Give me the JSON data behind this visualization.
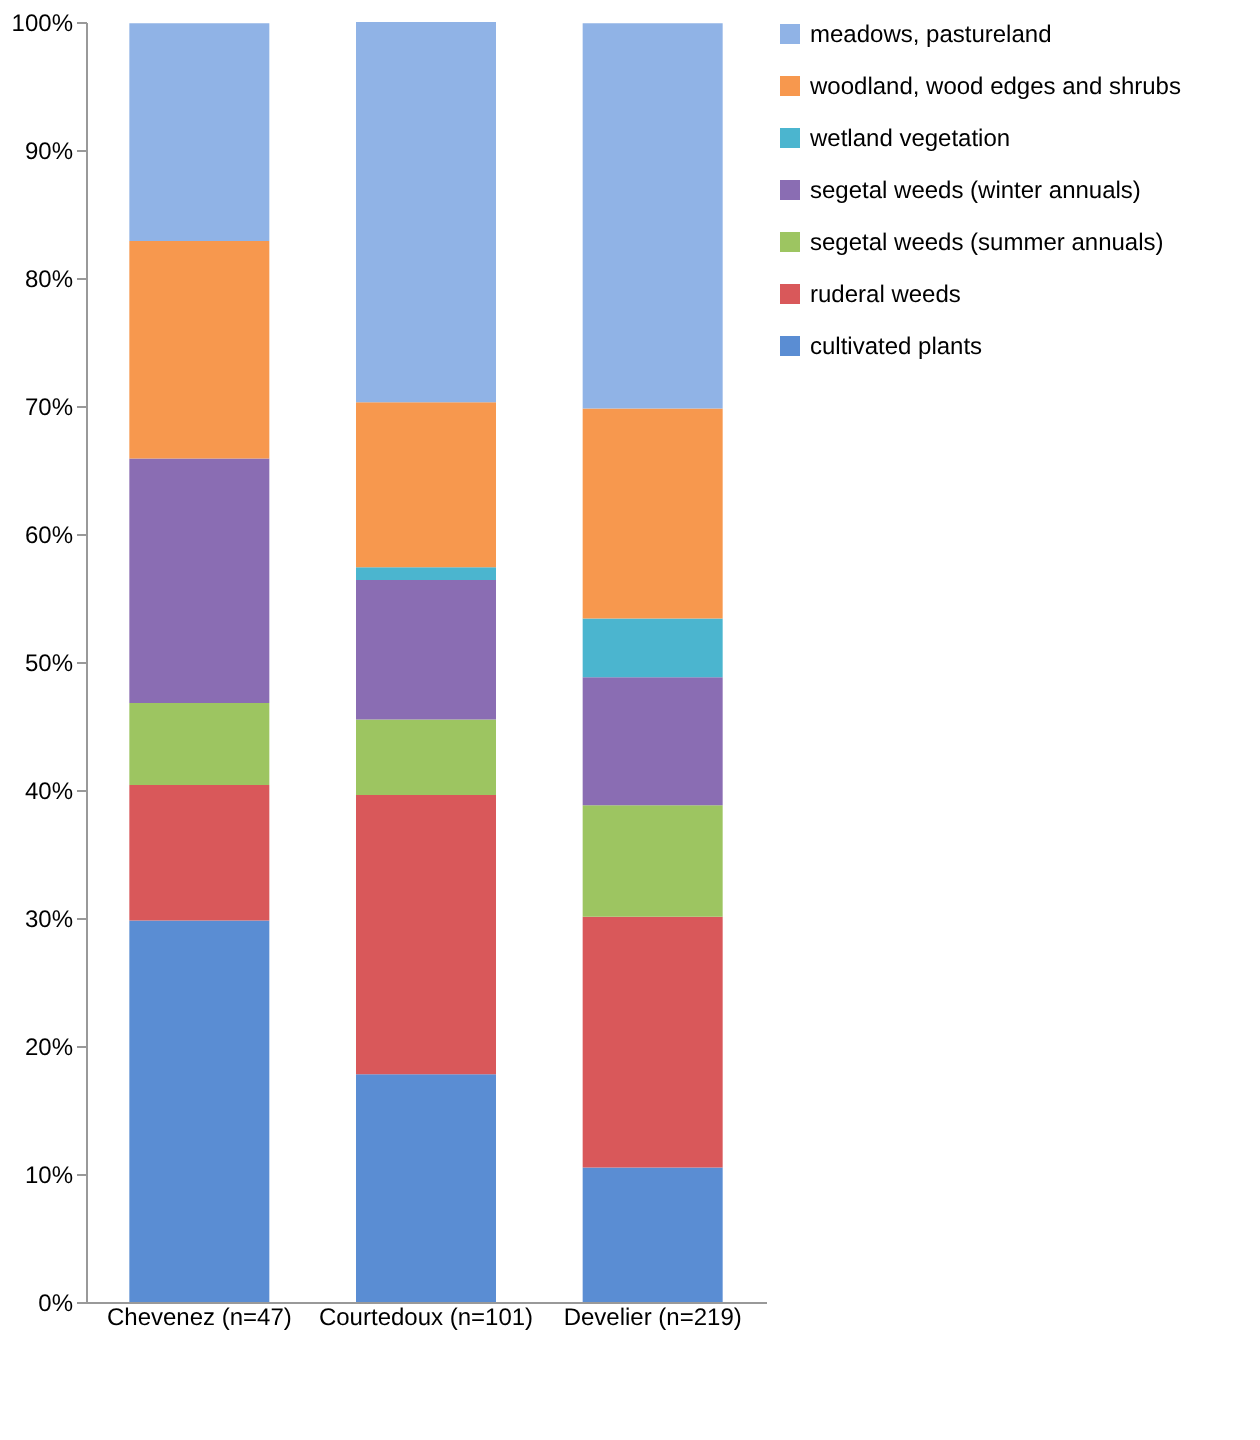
{
  "chart_data": {
    "type": "bar",
    "stacked": true,
    "categories": [
      "Chevenez (n=47)",
      "Courtedoux (n=101)",
      "Develier (n=219)"
    ],
    "series": [
      {
        "name": "cultivated plants",
        "color": "#5a8dd3",
        "values": [
          29.8,
          17.8,
          10.5
        ]
      },
      {
        "name": "ruderal weeds",
        "color": "#d9585a",
        "values": [
          10.6,
          21.8,
          19.6
        ]
      },
      {
        "name": "segetal weeds (summer annuals)",
        "color": "#9dc561",
        "values": [
          6.4,
          5.9,
          8.7
        ]
      },
      {
        "name": "segetal weeds (winter annuals)",
        "color": "#8a6db3",
        "values": [
          19.1,
          10.9,
          10.0
        ]
      },
      {
        "name": "wetland vegetation",
        "color": "#4bb5cf",
        "values": [
          0,
          1.0,
          4.6
        ]
      },
      {
        "name": "woodland, wood edges and shrubs",
        "color": "#f7984e",
        "values": [
          17.0,
          12.9,
          16.4
        ]
      },
      {
        "name": "meadows, pastureland",
        "color": "#90b3e6",
        "values": [
          17.0,
          29.7,
          30.1
        ]
      }
    ],
    "ylim": [
      0,
      100
    ],
    "yticks": [
      {
        "value": 0,
        "label": "0%"
      },
      {
        "value": 10,
        "label": "10%"
      },
      {
        "value": 20,
        "label": "20%"
      },
      {
        "value": 30,
        "label": "30%"
      },
      {
        "value": 40,
        "label": "40%"
      },
      {
        "value": 50,
        "label": "50%"
      },
      {
        "value": 60,
        "label": "60%"
      },
      {
        "value": 70,
        "label": "70%"
      },
      {
        "value": 80,
        "label": "80%"
      },
      {
        "value": 90,
        "label": "90%"
      },
      {
        "value": 100,
        "label": "100%"
      }
    ],
    "grid": false,
    "legend": "right"
  }
}
